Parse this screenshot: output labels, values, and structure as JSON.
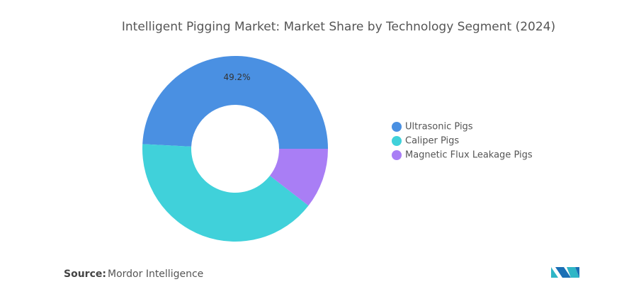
{
  "chart_data": {
    "type": "donut",
    "title": "Intelligent Pigging Market: Market Share by Technology Segment (2024)",
    "categories": [
      "Ultrasonic Pigs",
      "Caliper Pigs",
      "Magnetic Flux Leakage Pigs"
    ],
    "values": [
      49.2,
      40.3,
      10.5
    ],
    "value_labels": [
      "49.2%",
      null,
      null
    ],
    "colors": [
      "#4a90e2",
      "#40d1da",
      "#a97ef5"
    ],
    "legend": "right"
  },
  "source": {
    "label": "Source:",
    "text": "Mordor Intelligence"
  }
}
